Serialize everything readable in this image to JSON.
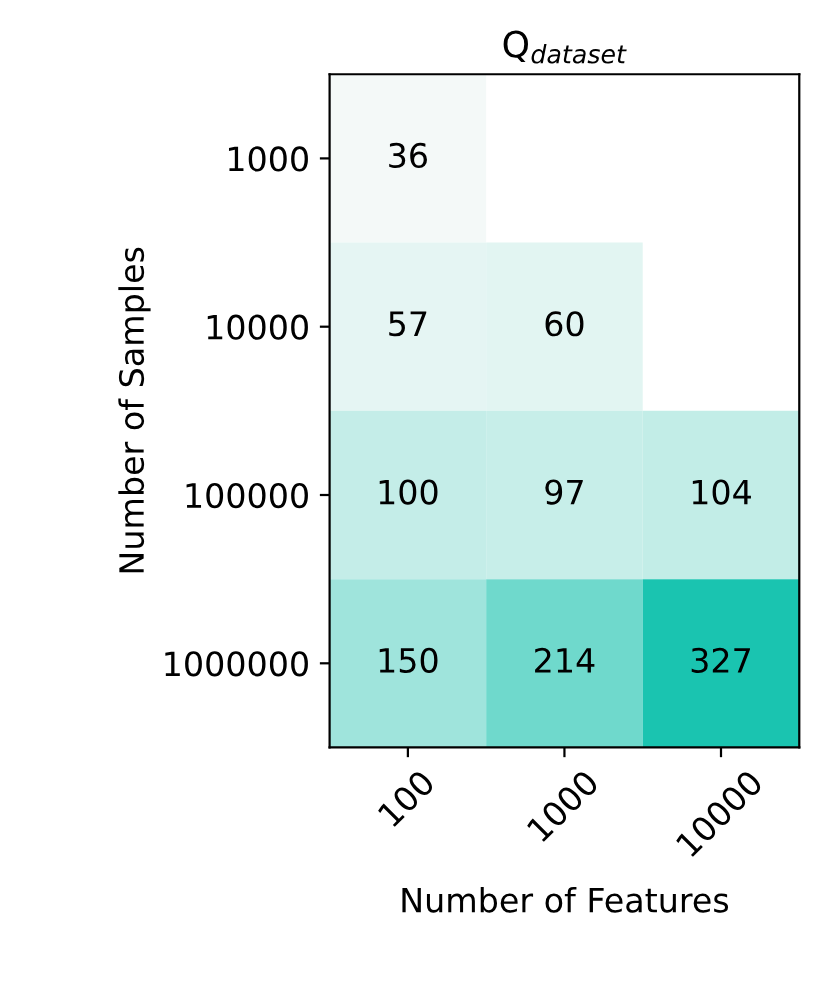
{
  "chart_data": {
    "type": "heatmap",
    "title": "Q$_{dataset}$",
    "xlabel": "Number of Features",
    "ylabel": "Number of Samples",
    "categories": [
      "100",
      "1000",
      "10000"
    ],
    "y_categories": [
      "1000",
      "10000",
      "100000",
      "1000000"
    ],
    "cells": [
      [
        36,
        null,
        null
      ],
      [
        57,
        60,
        null
      ],
      [
        100,
        97,
        104
      ],
      [
        150,
        214,
        327
      ]
    ],
    "data_labels": true
  }
}
